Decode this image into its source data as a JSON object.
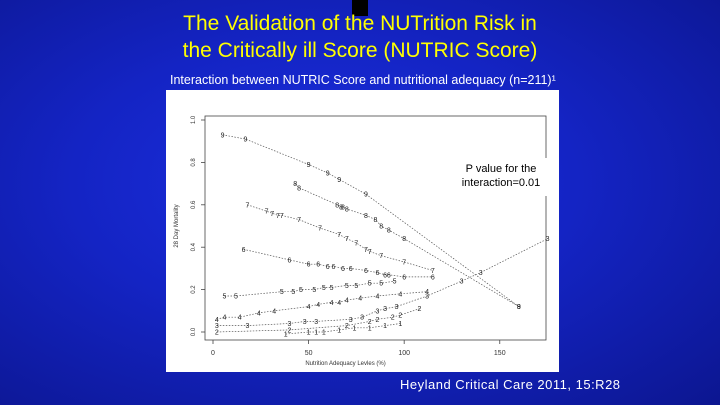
{
  "slide": {
    "title_line1": "The Validation of the NUTrition Risk in",
    "title_line2": "the Critically ill Score (NUTRIC Score)",
    "subtitle": "Interaction between NUTRIC Score and nutritional adequacy (n=211)¹",
    "citation": "Heyland Critical Care 2011, 15:R28",
    "colors": {
      "background": "#1424c4",
      "title": "#ffff00",
      "text": "#ffffff"
    }
  },
  "chart_data": {
    "type": "scatter",
    "xlabel": "Nutrition Adequacy Levles (%)",
    "ylabel": "28 Day Mortality",
    "xlim": [
      0,
      170
    ],
    "ylim": [
      0,
      1.0
    ],
    "x_ticks": [
      0,
      50,
      100,
      150
    ],
    "y_ticks": [
      0.0,
      0.2,
      0.4,
      0.6,
      0.8,
      1.0
    ],
    "annotation": "P value for the interaction=0.01",
    "grid": false,
    "legend": "none",
    "series": [
      {
        "marker": "9",
        "x": [
          5,
          17,
          50,
          60,
          66,
          80,
          160
        ],
        "y": [
          0.93,
          0.91,
          0.79,
          0.75,
          0.72,
          0.65,
          0.12
        ]
      },
      {
        "marker": "8",
        "x": [
          43,
          45,
          65,
          67,
          68,
          70,
          80,
          85,
          88,
          92,
          100,
          160
        ],
        "y": [
          0.7,
          0.68,
          0.6,
          0.59,
          0.59,
          0.58,
          0.55,
          0.53,
          0.5,
          0.48,
          0.44,
          0.12
        ]
      },
      {
        "marker": "7",
        "x": [
          18,
          28,
          31,
          34,
          36,
          45,
          56,
          66,
          70,
          75,
          80,
          82,
          88,
          100,
          115
        ],
        "y": [
          0.6,
          0.57,
          0.56,
          0.55,
          0.55,
          0.53,
          0.49,
          0.46,
          0.44,
          0.42,
          0.39,
          0.38,
          0.36,
          0.33,
          0.29
        ]
      },
      {
        "marker": "6",
        "x": [
          16,
          40,
          50,
          55,
          60,
          63,
          68,
          72,
          80,
          86,
          90,
          92,
          100,
          115
        ],
        "y": [
          0.39,
          0.34,
          0.32,
          0.32,
          0.31,
          0.31,
          0.3,
          0.3,
          0.29,
          0.28,
          0.27,
          0.27,
          0.26,
          0.26
        ]
      },
      {
        "marker": "5",
        "x": [
          6,
          12,
          36,
          42,
          46,
          53,
          58,
          62,
          70,
          75,
          82,
          88,
          95
        ],
        "y": [
          0.17,
          0.17,
          0.19,
          0.19,
          0.2,
          0.2,
          0.21,
          0.21,
          0.22,
          0.22,
          0.23,
          0.23,
          0.24
        ]
      },
      {
        "marker": "4",
        "x": [
          2,
          6,
          14,
          24,
          32,
          50,
          55,
          62,
          66,
          70,
          77,
          86,
          98,
          112
        ],
        "y": [
          0.06,
          0.07,
          0.07,
          0.09,
          0.1,
          0.12,
          0.13,
          0.14,
          0.14,
          0.15,
          0.16,
          0.17,
          0.18,
          0.19
        ]
      },
      {
        "marker": "3",
        "x": [
          2,
          18,
          40,
          48,
          54,
          72,
          78,
          86,
          90,
          96,
          112,
          130,
          140,
          175
        ],
        "y": [
          0.03,
          0.03,
          0.04,
          0.05,
          0.05,
          0.06,
          0.07,
          0.1,
          0.11,
          0.12,
          0.17,
          0.24,
          0.28,
          0.44
        ]
      },
      {
        "marker": "2",
        "x": [
          2,
          40,
          70,
          82,
          86,
          94,
          98,
          108
        ],
        "y": [
          0.0,
          0.01,
          0.03,
          0.05,
          0.06,
          0.07,
          0.08,
          0.11
        ]
      },
      {
        "marker": "1",
        "x": [
          38,
          50,
          54,
          58,
          66,
          74,
          82,
          90,
          98
        ],
        "y": [
          -0.01,
          0.0,
          0.0,
          0.0,
          0.01,
          0.02,
          0.02,
          0.03,
          0.04
        ]
      }
    ]
  }
}
